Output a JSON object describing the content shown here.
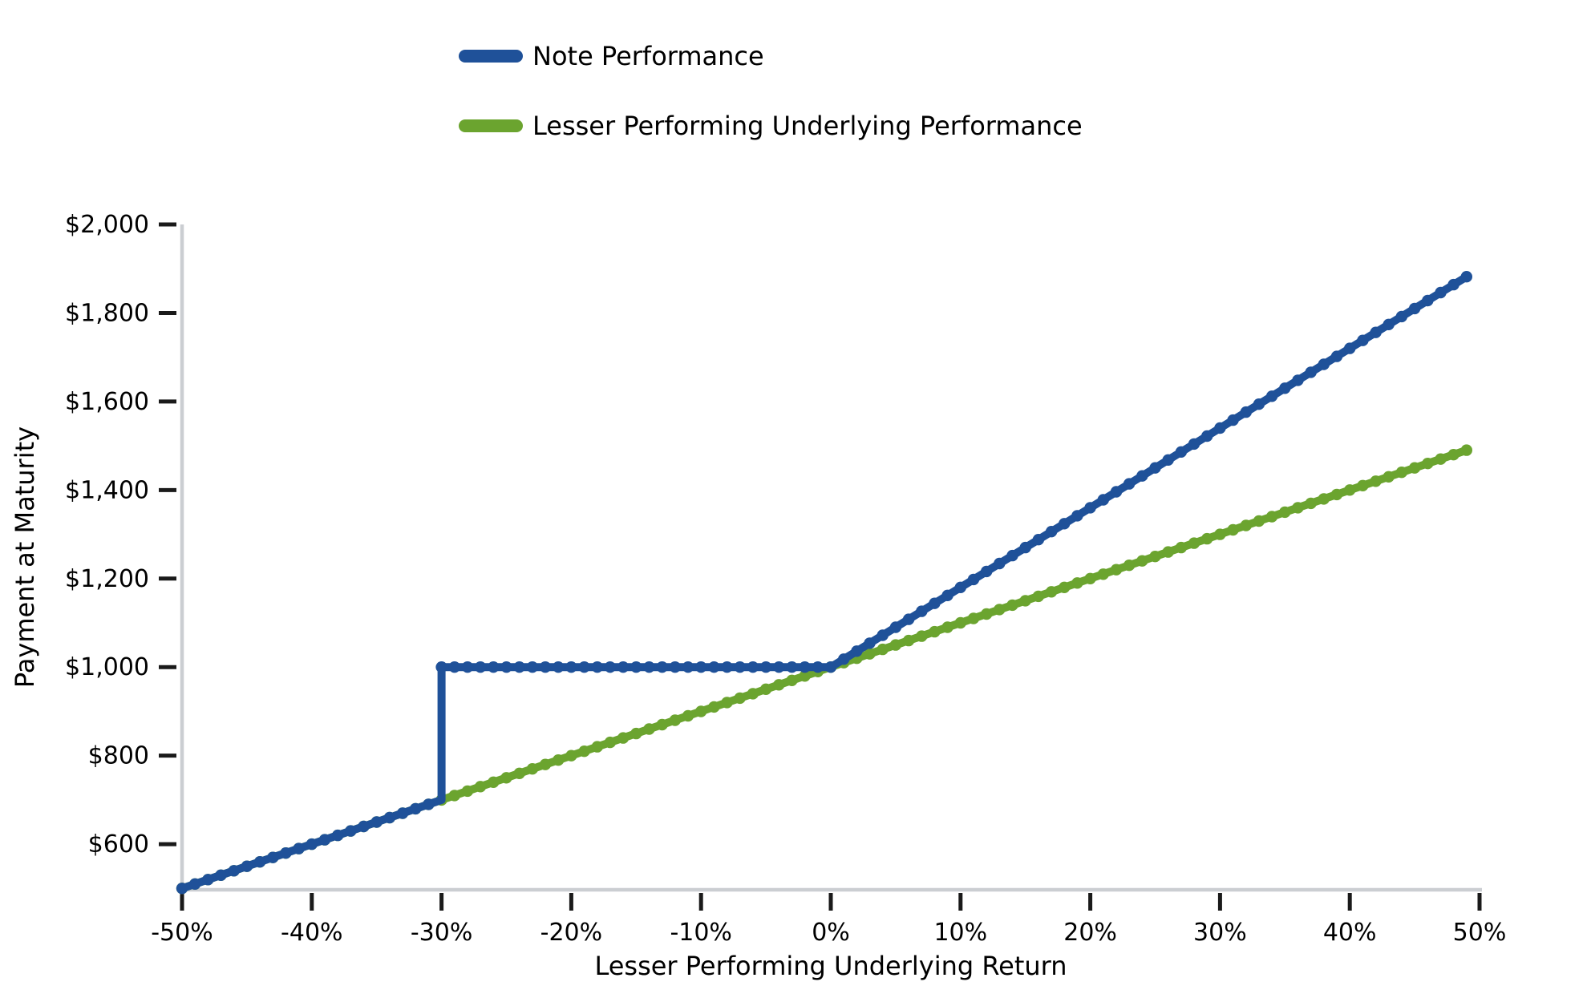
{
  "figure": {
    "background": "#ffffff"
  },
  "legend": {
    "items": [
      {
        "label": "Note Performance",
        "color": "#1F5199"
      },
      {
        "label": "Lesser Performing Underlying Performance",
        "color": "#6BA42F"
      }
    ]
  },
  "chart_data": {
    "type": "line",
    "title": "",
    "xlabel": "Lesser Performing Underlying Return",
    "ylabel": "Payment at Maturity",
    "xlim": [
      -50,
      50
    ],
    "ylim": [
      497,
      2000
    ],
    "x_unit": "percent_return",
    "y_unit": "dollars",
    "grid": false,
    "legend_position": "above-plot-left",
    "x_ticks": [
      -50,
      -40,
      -30,
      -20,
      -10,
      0,
      10,
      20,
      30,
      40,
      50
    ],
    "x_tick_labels": [
      "-50%",
      "-40%",
      "-30%",
      "-20%",
      "-10%",
      "0%",
      "10%",
      "20%",
      "30%",
      "40%",
      "50%"
    ],
    "y_ticks": [
      600,
      800,
      1000,
      1200,
      1400,
      1600,
      1800,
      2000
    ],
    "y_tick_labels": [
      "$600",
      "$800",
      "$1,000",
      "$1,200",
      "$1,400",
      "$1,600",
      "$1,800",
      "$2,000"
    ],
    "x_data_range": [
      -50,
      49
    ],
    "marker_step_percent": 1,
    "series": [
      {
        "name": "Note Performance",
        "color": "#1F5199",
        "breakpoints": [
          [
            -50,
            500
          ],
          [
            -30,
            700
          ],
          [
            -30,
            1000
          ],
          [
            0,
            1000
          ],
          [
            49,
            1882
          ]
        ]
      },
      {
        "name": "Lesser Performing Underlying Performance",
        "color": "#6BA42F",
        "breakpoints": [
          [
            -50,
            500
          ],
          [
            49,
            1490
          ]
        ]
      }
    ],
    "annotations": {
      "barrier_return_percent": -30,
      "payment_at_barrier": 1000,
      "principal": 1000,
      "upside_leverage": 1.8
    }
  },
  "style": {
    "spine_color": "#CBCED2",
    "tick_color": "#1A1A1A",
    "text_color": "#000000"
  }
}
